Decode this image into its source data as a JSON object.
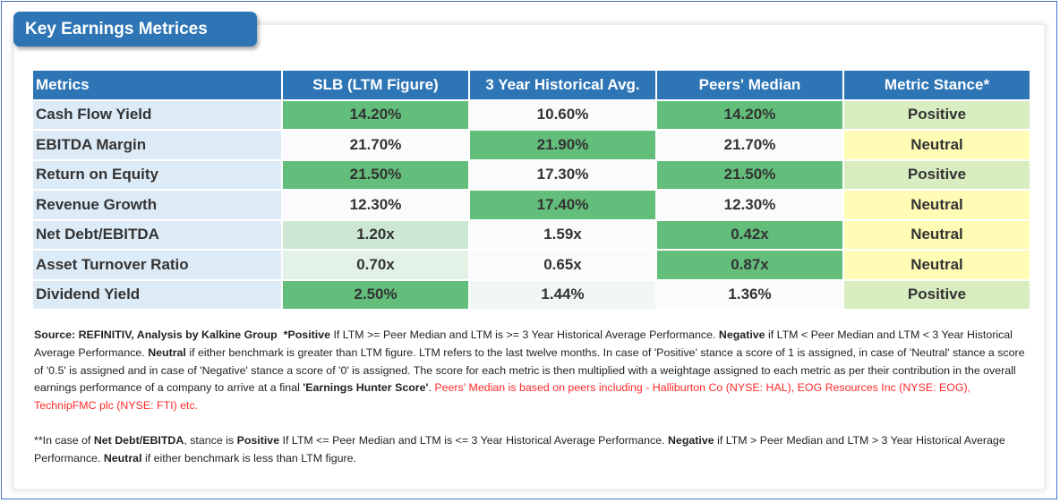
{
  "title": "Key Earnings Metrices",
  "table": {
    "headers": [
      "Metrics",
      "SLB (LTM Figure)",
      "3 Year Historical Avg.",
      "Peers' Median",
      "Metric Stance*"
    ],
    "rows": [
      {
        "metric": "Cash Flow Yield",
        "ltm": "14.20%",
        "hist": "10.60%",
        "peers": "14.20%",
        "stance": "Positive",
        "ltm_shade": "strong",
        "hist_shade": "none",
        "peers_shade": "strong"
      },
      {
        "metric": "EBITDA Margin",
        "ltm": "21.70%",
        "hist": "21.90%",
        "peers": "21.70%",
        "stance": "Neutral",
        "ltm_shade": "none",
        "hist_shade": "strong",
        "peers_shade": "none"
      },
      {
        "metric": "Return on Equity",
        "ltm": "21.50%",
        "hist": "17.30%",
        "peers": "21.50%",
        "stance": "Positive",
        "ltm_shade": "strong",
        "hist_shade": "none",
        "peers_shade": "strong"
      },
      {
        "metric": "Revenue Growth",
        "ltm": "12.30%",
        "hist": "17.40%",
        "peers": "12.30%",
        "stance": "Neutral",
        "ltm_shade": "none",
        "hist_shade": "strong",
        "peers_shade": "none"
      },
      {
        "metric": "Net Debt/EBITDA",
        "ltm": "1.20x",
        "hist": "1.59x",
        "peers": "0.42x",
        "stance": "Neutral",
        "ltm_shade": "mid",
        "hist_shade": "none",
        "peers_shade": "strong"
      },
      {
        "metric": "Asset Turnover Ratio",
        "ltm": "0.70x",
        "hist": "0.65x",
        "peers": "0.87x",
        "stance": "Neutral",
        "ltm_shade": "light",
        "hist_shade": "none",
        "peers_shade": "strong"
      },
      {
        "metric": "Dividend Yield",
        "ltm": "2.50%",
        "hist": "1.44%",
        "peers": "1.36%",
        "stance": "Positive",
        "ltm_shade": "strong",
        "hist_shade": "faint",
        "peers_shade": "none"
      }
    ]
  },
  "notes": {
    "source": "Source: REFINITIV, Analysis by Kalkine Group",
    "star": "*",
    "positive_label": "Positive",
    "positive_text": " If LTM >= Peer Median and LTM is >= 3 Year Historical Average Performance. ",
    "negative_label": "Negative",
    "negative_text": " if LTM < Peer Median and LTM < 3 Year Historical Average Performance. ",
    "neutral_label": "Neutral",
    "neutral_text": " if either benchmark is greater than LTM figure. LTM refers to the last twelve months. In case of 'Positive' stance a score of 1 is assigned, in case of 'Neutral' stance a score of '0.5' is assigned and in case of 'Negative' stance a score of '0' is assigned. The score for each metric is then multiplied with a weightage assigned to each metric as per their contribution in the overall earnings performance of a company to arrive at a final ",
    "score_label": "'Earnings Hunter Score'",
    "period": ". ",
    "peers_note": "Peers' Median is based on peers including - Halliburton Co (NYSE: HAL), EOG Resources Inc (NYSE: EOG), TechnipFMC plc (NYSE: FTI) etc.",
    "nd_prefix": "**In case of ",
    "nd_label": "Net Debt/EBITDA",
    "nd_mid": ", stance is ",
    "nd_positive": "Positive",
    "nd_positive_text": " If LTM <= Peer Median and LTM is <= 3 Year Historical Average Performance. ",
    "nd_negative": "Negative",
    "nd_negative_text": " if LTM > Peer Median and LTM > 3 Year Historical Average Performance. ",
    "nd_neutral": "Neutral",
    "nd_neutral_text": " if either benchmark is less than LTM figure."
  }
}
